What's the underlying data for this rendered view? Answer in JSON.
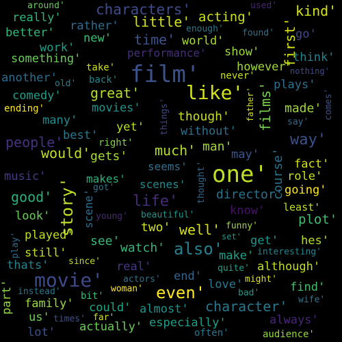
{
  "words": [
    {
      "text": "film'",
      "color": "#3b528b"
    },
    {
      "text": "one'",
      "color": "#bddf26"
    },
    {
      "text": "like'",
      "color": "#d2e21b"
    },
    {
      "text": "movie'",
      "color": "#3e4a89"
    },
    {
      "text": "story'",
      "color": "#bddf26"
    },
    {
      "text": "also'",
      "color": "#27808e"
    },
    {
      "text": "even'",
      "color": "#fde725"
    },
    {
      "text": "films'",
      "color": "#7ad151"
    },
    {
      "text": "character'",
      "color": "#2a788e"
    },
    {
      "text": "characters'",
      "color": "#3e4c8a"
    },
    {
      "text": "time'",
      "color": "#3b528b"
    },
    {
      "text": "much'",
      "color": "#b5de2b"
    },
    {
      "text": "well'",
      "color": "#d8e219"
    },
    {
      "text": "way'",
      "color": "#3b528b"
    },
    {
      "text": "would'",
      "color": "#c2df23"
    },
    {
      "text": "little'",
      "color": "#d2e21b"
    },
    {
      "text": "good'",
      "color": "#2ab07f"
    },
    {
      "text": "people'",
      "color": "#46327e"
    },
    {
      "text": "great'",
      "color": "#b5de2b"
    },
    {
      "text": "life'",
      "color": "#472c7a"
    },
    {
      "text": "director'",
      "color": "#2c738e"
    },
    {
      "text": "first'",
      "color": "#d8e219"
    },
    {
      "text": "course'",
      "color": "#2c728e"
    },
    {
      "text": "acting'",
      "color": "#cde11d"
    },
    {
      "text": "though'",
      "color": "#c8e020"
    },
    {
      "text": "kind'",
      "color": "#d8e219"
    },
    {
      "text": "watch'",
      "color": "#35b779"
    },
    {
      "text": "plot'",
      "color": "#44bf70"
    },
    {
      "text": "made'",
      "color": "#9fda3a"
    },
    {
      "text": "see'",
      "color": "#37b878"
    },
    {
      "text": "made'",
      "color": "#9fda3a"
    },
    {
      "text": "gets'",
      "color": "#a5db36"
    },
    {
      "text": "two'",
      "color": "#d2e21b"
    },
    {
      "text": "man'",
      "color": "#a2da37"
    },
    {
      "text": "music'",
      "color": "#443983"
    },
    {
      "text": "scenes'",
      "color": "#23898e"
    },
    {
      "text": "makes'",
      "color": "#2db27d"
    },
    {
      "text": "performance'",
      "color": "#472d7b"
    },
    {
      "text": "really'",
      "color": "#31b57b"
    },
    {
      "text": "something'",
      "color": "#6ccd5a"
    },
    {
      "text": "better'",
      "color": "#34b679"
    },
    {
      "text": "work'",
      "color": "#1f9f88"
    },
    {
      "text": "new'",
      "color": "#3dbc74"
    },
    {
      "text": "rather'",
      "color": "#2f6c8e"
    },
    {
      "text": "world'",
      "color": "#a8db34"
    },
    {
      "text": "show'",
      "color": "#9dd93b"
    },
    {
      "text": "think'",
      "color": "#26828e"
    },
    {
      "text": "however'",
      "color": "#a0da39"
    },
    {
      "text": "plays'",
      "color": "#2d708e"
    },
    {
      "text": "another'",
      "color": "#2e6e8e"
    },
    {
      "text": "comedy'",
      "color": "#1f9e89"
    },
    {
      "text": "ending'",
      "color": "#fde725"
    },
    {
      "text": "movies'",
      "color": "#21918c"
    },
    {
      "text": "many'",
      "color": "#228c8d"
    },
    {
      "text": "best'",
      "color": "#2a788e"
    },
    {
      "text": "yet'",
      "color": "#b5de2b"
    },
    {
      "text": "without'",
      "color": "#2d718e"
    },
    {
      "text": "fact'",
      "color": "#d5e21a"
    },
    {
      "text": "role'",
      "color": "#c5e021"
    },
    {
      "text": "going'",
      "color": "#fde725"
    },
    {
      "text": "seems'",
      "color": "#2e6f8e"
    },
    {
      "text": "may'",
      "color": "#39558c"
    },
    {
      "text": "know'",
      "color": "#471365"
    },
    {
      "text": "least'",
      "color": "#c2df23"
    },
    {
      "text": "look'",
      "color": "#6ccd5a"
    },
    {
      "text": "played'",
      "color": "#bddf26"
    },
    {
      "text": "still'",
      "color": "#c8e020"
    },
    {
      "text": "thats'",
      "color": "#26828e"
    },
    {
      "text": "get'",
      "color": "#1f948c"
    },
    {
      "text": "hes'",
      "color": "#b8de29"
    },
    {
      "text": "make'",
      "color": "#1fa088"
    },
    {
      "text": "although'",
      "color": "#c2df23"
    },
    {
      "text": "find'",
      "color": "#44bf70"
    },
    {
      "text": "love'",
      "color": "#2a788e"
    },
    {
      "text": "real'",
      "color": "#453781"
    },
    {
      "text": "end'",
      "color": "#31678e"
    },
    {
      "text": "family'",
      "color": "#9bd93c"
    },
    {
      "text": "us'",
      "color": "#73d056"
    },
    {
      "text": "lot'",
      "color": "#3b528b"
    },
    {
      "text": "actually'",
      "color": "#6ccd5a"
    },
    {
      "text": "could'",
      "color": "#21a685"
    },
    {
      "text": "almost'",
      "color": "#20938c"
    },
    {
      "text": "especially'",
      "color": "#1fa088"
    },
    {
      "text": "always'",
      "color": "#482677"
    },
    {
      "text": "audience'",
      "color": "#93d741"
    },
    {
      "text": "often'",
      "color": "#2b758e"
    },
    {
      "text": "around'",
      "color": "#69cd5b"
    },
    {
      "text": "used'",
      "color": "#482576"
    },
    {
      "text": "enough'",
      "color": "#29798e"
    },
    {
      "text": "found'",
      "color": "#2c728e"
    },
    {
      "text": "go'",
      "color": "#3e4989"
    },
    {
      "text": "nothing'",
      "color": "#3e4c8a"
    },
    {
      "text": "take'",
      "color": "#d0e11c"
    },
    {
      "text": "never'",
      "color": "#c8e020"
    },
    {
      "text": "old'",
      "color": "#25838e"
    },
    {
      "text": "back'",
      "color": "#24868e"
    },
    {
      "text": "comes'",
      "color": "#3b528b"
    },
    {
      "text": "say'",
      "color": "#2f6b8e"
    },
    {
      "text": "right'",
      "color": "#7fd34e"
    },
    {
      "text": "got'",
      "color": "#2b748e"
    },
    {
      "text": "young'",
      "color": "#482878"
    },
    {
      "text": "beautiful'",
      "color": "#1f958b"
    },
    {
      "text": "funny'",
      "color": "#a2da37"
    },
    {
      "text": "set'",
      "color": "#1f968b"
    },
    {
      "text": "interesting'",
      "color": "#25848e"
    },
    {
      "text": "since'",
      "color": "#c0df25"
    },
    {
      "text": "quite'",
      "color": "#1fa188"
    },
    {
      "text": "might'",
      "color": "#e2e418"
    },
    {
      "text": "actors'",
      "color": "#2c728e"
    },
    {
      "text": "woman'",
      "color": "#fde725"
    },
    {
      "text": "bad'",
      "color": "#1f9a8a"
    },
    {
      "text": "wife'",
      "color": "#2a788e"
    },
    {
      "text": "bit'",
      "color": "#3dbc74"
    },
    {
      "text": "instead'",
      "color": "#2b758e"
    },
    {
      "text": "times'",
      "color": "#3b528b"
    },
    {
      "text": "far'",
      "color": "#d5e21a"
    },
    {
      "text": "part'",
      "color": "#90d743"
    },
    {
      "text": "play'",
      "color": "#2f6b8e"
    },
    {
      "text": "things'",
      "color": "#3e4a89"
    },
    {
      "text": "father'",
      "color": "#d8e219"
    },
    {
      "text": "thought'",
      "color": "#31688e"
    },
    {
      "text": "scene'",
      "color": "#2d708e"
    }
  ]
}
